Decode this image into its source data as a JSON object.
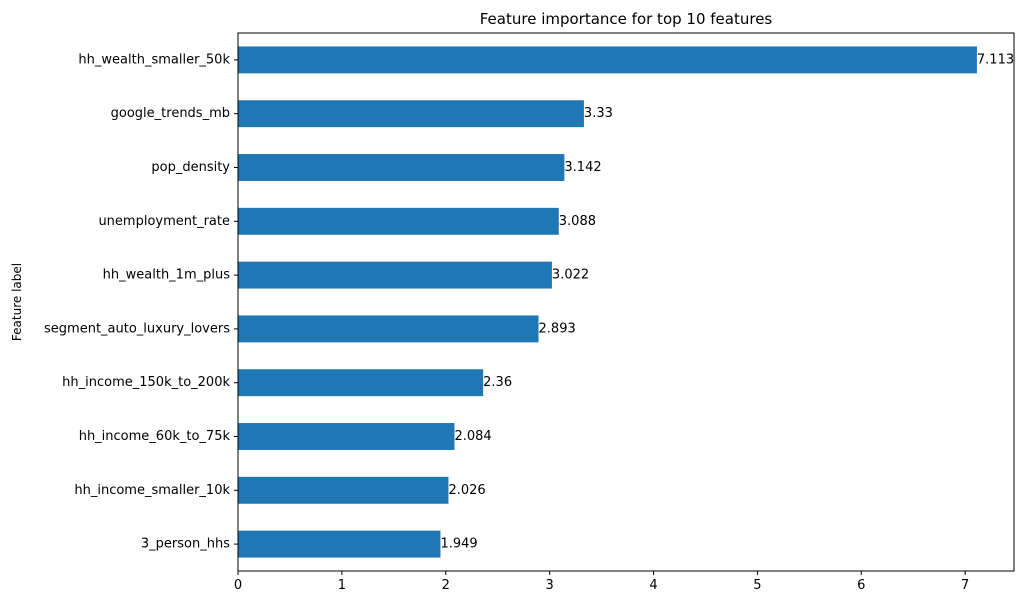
{
  "chart_data": {
    "type": "bar",
    "orientation": "horizontal",
    "title": "Feature importance for top 10 features",
    "xlabel": "",
    "ylabel": "Feature label",
    "categories": [
      "hh_wealth_smaller_50k",
      "google_trends_mb",
      "pop_density",
      "unemployment_rate",
      "hh_wealth_1m_plus",
      "segment_auto_luxury_lovers",
      "hh_income_150k_to_200k",
      "hh_income_60k_to_75k",
      "hh_income_smaller_10k",
      "3_person_hhs"
    ],
    "values": [
      7.113,
      3.33,
      3.142,
      3.088,
      3.022,
      2.893,
      2.36,
      2.084,
      2.026,
      1.949
    ],
    "data_labels": [
      "7.113",
      "3.33",
      "3.142",
      "3.088",
      "3.022",
      "2.893",
      "2.36",
      "2.084",
      "2.026",
      "1.949"
    ],
    "xlim": [
      0,
      7.47
    ],
    "xticks": [
      0,
      1,
      2,
      3,
      4,
      5,
      6,
      7
    ],
    "xtick_labels": [
      "0",
      "1",
      "2",
      "3",
      "4",
      "5",
      "6",
      "7"
    ],
    "grid": false,
    "legend": "none",
    "bar_color": "#1f77b4"
  }
}
